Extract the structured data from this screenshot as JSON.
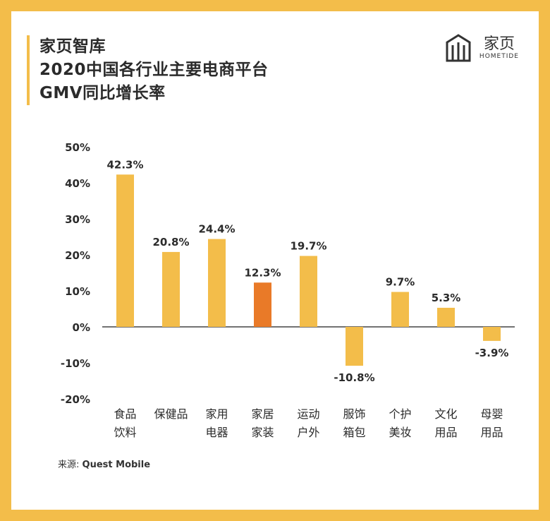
{
  "title_lines": [
    "家页智库",
    "2020中国各行业主要电商平台",
    "GMV同比增长率"
  ],
  "brand": {
    "name_cn": "家页",
    "name_en": "HOMETIDE",
    "logo_icon": "hometide-logo-icon"
  },
  "source": {
    "label": "来源:",
    "name": "Quest Mobile"
  },
  "colors": {
    "frame": "#F3BD4A",
    "bar": "#F3BD4A",
    "highlight_bar": "#E97A28",
    "text": "#2B2B2B"
  },
  "chart_data": {
    "type": "bar",
    "categories": [
      [
        "食品",
        "饮料"
      ],
      [
        "保健品"
      ],
      [
        "家用",
        "电器"
      ],
      [
        "家居",
        "家装"
      ],
      [
        "运动",
        "户外"
      ],
      [
        "服饰",
        "箱包"
      ],
      [
        "个护",
        "美妆"
      ],
      [
        "文化",
        "用品"
      ],
      [
        "母婴",
        "用品"
      ]
    ],
    "values": [
      42.3,
      20.8,
      24.4,
      12.3,
      19.7,
      -10.8,
      9.7,
      5.3,
      -3.9
    ],
    "value_labels": [
      "42.3%",
      "20.8%",
      "24.4%",
      "12.3%",
      "19.7%",
      "-10.8%",
      "9.7%",
      "5.3%",
      "-3.9%"
    ],
    "highlight_index": 3,
    "ylim": [
      -20,
      50
    ],
    "yticks": [
      50,
      40,
      30,
      20,
      10,
      0,
      -10,
      -20
    ],
    "ytick_labels": [
      "50%",
      "40%",
      "30%",
      "20%",
      "10%",
      "0%",
      "-10%",
      "-20%"
    ],
    "grid": false,
    "legend": "none"
  }
}
